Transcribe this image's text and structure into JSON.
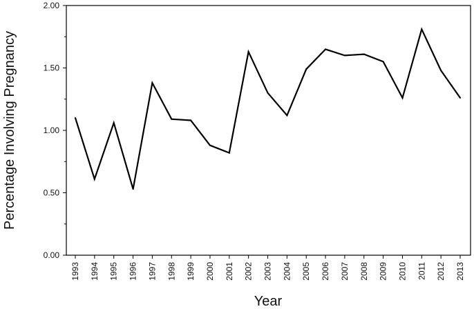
{
  "chart_data": {
    "type": "line",
    "title": "",
    "xlabel": "Year",
    "ylabel": "Percentage Involving Pregnancy",
    "x": [
      "1993",
      "1994",
      "1995",
      "1996",
      "1997",
      "1998",
      "1999",
      "2000",
      "2001",
      "2002",
      "2003",
      "2004",
      "2005",
      "2006",
      "2007",
      "2008",
      "2009",
      "2010",
      "2011",
      "2012",
      "2013"
    ],
    "series": [
      {
        "values": [
          1.1,
          0.61,
          1.06,
          0.53,
          1.38,
          1.09,
          1.08,
          0.88,
          0.82,
          1.63,
          1.3,
          1.12,
          1.49,
          1.65,
          1.6,
          1.61,
          1.55,
          1.26,
          1.81,
          1.48,
          1.26
        ],
        "color": "#000000"
      }
    ],
    "ylim": [
      0,
      2
    ],
    "yticks": [
      "0.00",
      "0.50",
      "1.00",
      "1.50",
      "2.00"
    ],
    "ytick_values": [
      0,
      0.5,
      1,
      1.5,
      2
    ],
    "grid": false,
    "legend": "none"
  }
}
